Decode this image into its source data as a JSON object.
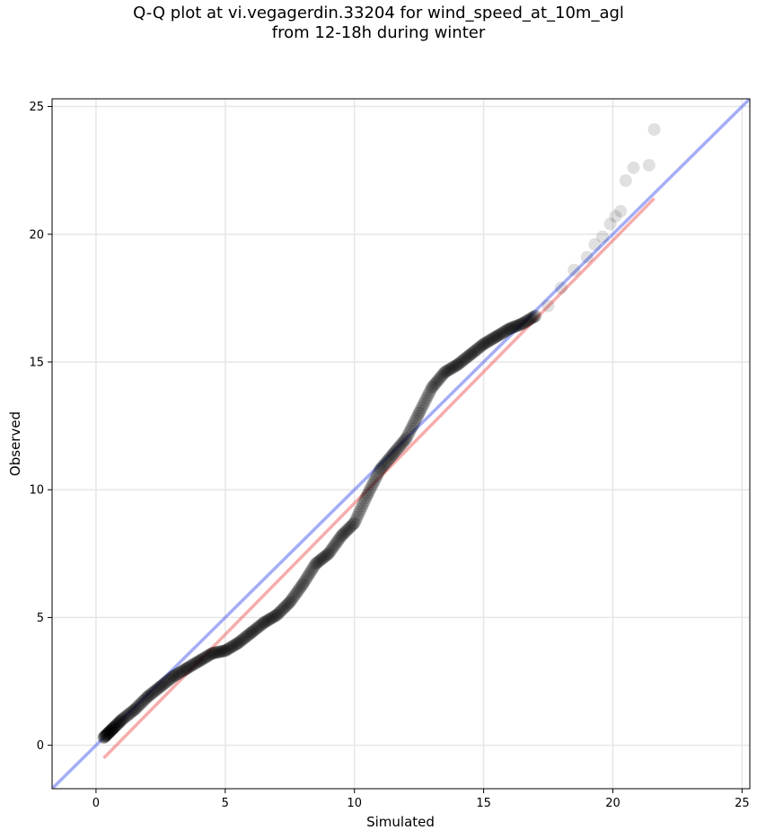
{
  "title": {
    "line1": "Q-Q plot at vi.vegagerdin.33204 for wind_speed_at_10m_agl",
    "line2": "from 12-18h during winter"
  },
  "chart_data": {
    "type": "scatter",
    "title": "Q-Q plot at vi.vegagerdin.33204 for wind_speed_at_10m_agl from 12-18h during winter",
    "xlabel": "Simulated",
    "ylabel": "Observed",
    "xlim": [
      -1.7,
      25.3
    ],
    "ylim": [
      -1.7,
      25.3
    ],
    "xticks": [
      0,
      5,
      10,
      15,
      20,
      25
    ],
    "yticks": [
      0,
      5,
      10,
      15,
      20,
      25
    ],
    "grid": true,
    "colors": {
      "points": "#000000",
      "identity_line": "#4a5cf0",
      "fit_line": "#f05a5a",
      "grid": "#e6e6e6"
    },
    "lines": [
      {
        "kind": "identity",
        "color": "#4a5cf0",
        "x": [
          -1.7,
          25.3
        ],
        "y": [
          -1.7,
          25.3
        ]
      },
      {
        "kind": "fit",
        "color": "#f05a5a",
        "x": [
          0.3,
          21.6
        ],
        "y": [
          -0.5,
          21.4
        ]
      }
    ],
    "quantiles": {
      "simulated": [
        0.3,
        0.5,
        0.7,
        1.0,
        1.5,
        2.0,
        2.5,
        3.0,
        3.5,
        4.0,
        4.5,
        5.0,
        5.5,
        6.0,
        6.5,
        7.0,
        7.5,
        8.0,
        8.5,
        9.0,
        9.5,
        10.0,
        10.5,
        11.0,
        11.5,
        12.0,
        12.5,
        13.0,
        13.5,
        14.0,
        14.5,
        15.0,
        15.5,
        16.0,
        16.5,
        17.0,
        17.5,
        18.0,
        18.5,
        19.0,
        19.3,
        19.6,
        19.9,
        20.1,
        20.3,
        20.5,
        20.8,
        21.4,
        21.6
      ],
      "observed": [
        0.3,
        0.5,
        0.7,
        1.0,
        1.4,
        1.9,
        2.3,
        2.7,
        3.0,
        3.3,
        3.6,
        3.7,
        4.0,
        4.4,
        4.8,
        5.1,
        5.6,
        6.3,
        7.1,
        7.5,
        8.2,
        8.7,
        9.8,
        10.8,
        11.4,
        12.0,
        13.0,
        14.0,
        14.6,
        14.9,
        15.3,
        15.7,
        16.0,
        16.3,
        16.5,
        16.8,
        17.2,
        17.9,
        18.6,
        19.1,
        19.6,
        19.9,
        20.4,
        20.7,
        20.9,
        22.1,
        22.6,
        22.7,
        24.1
      ]
    }
  }
}
